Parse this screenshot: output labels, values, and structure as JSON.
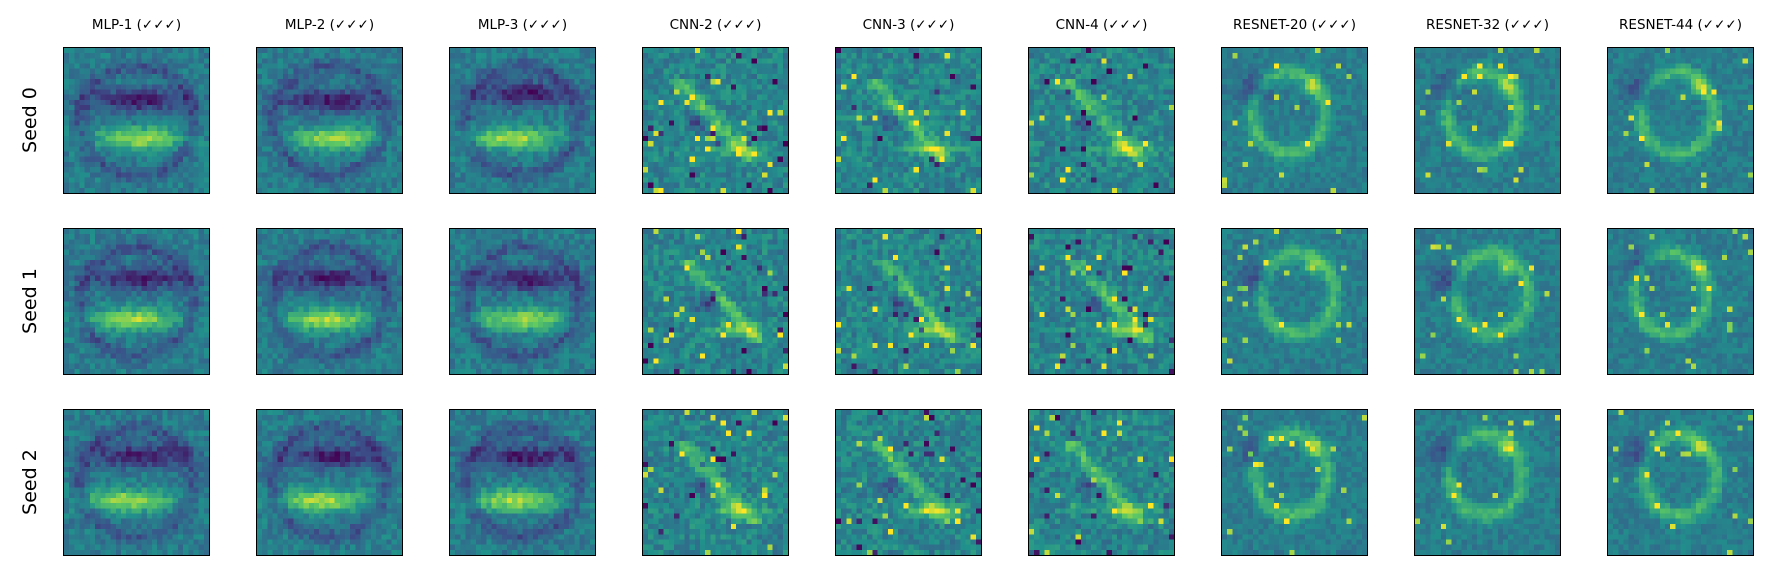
{
  "chart_data": {
    "type": "heatmap",
    "description_title": "",
    "colormap": [
      "#440154",
      "#3b528b",
      "#21918c",
      "#5ec962",
      "#fde725"
    ],
    "columns": [
      "MLP-1 (✓✓✓)",
      "MLP-2 (✓✓✓)",
      "MLP-3 (✓✓✓)",
      "CNN-2 (✓✓✓)",
      "CNN-3 (✓✓✓)",
      "CNN-4 (✓✓✓)",
      "RESNET-20 (✓✓✓)",
      "RESNET-32 (✓✓✓)",
      "RESNET-44 (✓✓✓)"
    ],
    "rows": [
      "Seed 0",
      "Seed 1",
      "Seed 2"
    ],
    "grid_size": 28,
    "ticks": false
  }
}
